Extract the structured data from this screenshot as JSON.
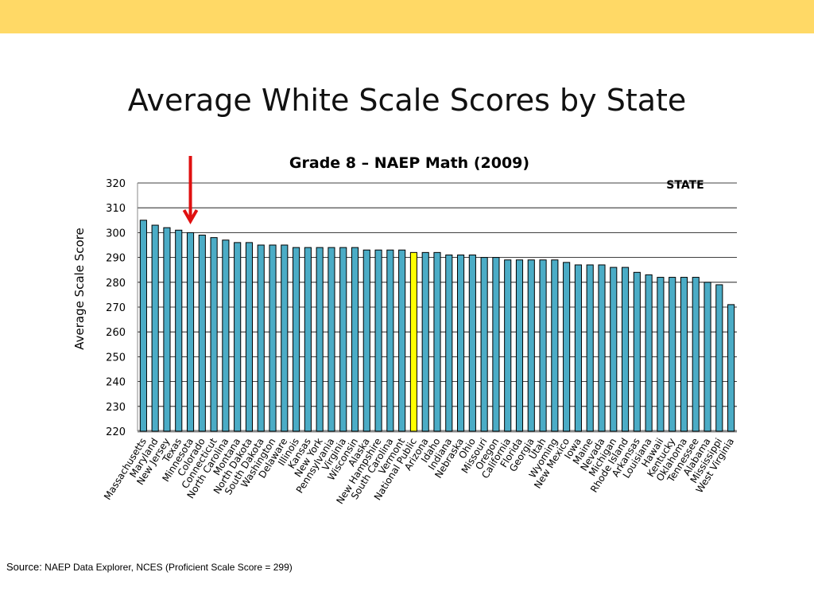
{
  "slide": {
    "title": "Average White Scale Scores by State",
    "source_label": "Source:",
    "source_text": "NAEP Data Explorer, NCES (Proficient Scale Score = 299)"
  },
  "colors": {
    "band": "#FFD966",
    "bar": "#4BACC6",
    "bar_highlight": "#FFFF00",
    "bar_outline": "#000000",
    "arrow": "#E01010"
  },
  "chart_data": {
    "type": "bar",
    "title": "Grade 8 – NAEP Math (2009)",
    "xlabel": "",
    "ylabel": "Average Scale Score",
    "annotation": "STATE",
    "ylim": [
      220,
      320
    ],
    "yticks": [
      220,
      230,
      240,
      250,
      260,
      270,
      280,
      290,
      300,
      310,
      320
    ],
    "grid": true,
    "highlight_category": "National Public",
    "arrow_category": "Minnesota",
    "categories": [
      "Massachusetts",
      "Maryland",
      "New Jersey",
      "Texas",
      "Minnesota",
      "Colorado",
      "Connecticut",
      "North Carolina",
      "Montana",
      "North Dakota",
      "South Dakota",
      "Washington",
      "Delaware",
      "Illinois",
      "Kansas",
      "New York",
      "Pennsylvania",
      "Virginia",
      "Wisconsin",
      "Alaska",
      "New Hampshire",
      "South Carolina",
      "Vermont",
      "National Public",
      "Arizona",
      "Idaho",
      "Indiana",
      "Nebraska",
      "Ohio",
      "Missouri",
      "Oregon",
      "California",
      "Florida",
      "Georgia",
      "Utah",
      "Wyoming",
      "New Mexico",
      "Iowa",
      "Maine",
      "Nevada",
      "Michigan",
      "Rhode Island",
      "Arkansas",
      "Louisiana",
      "Hawaii",
      "Kentucky",
      "Oklahoma",
      "Tennessee",
      "Alabama",
      "Mississippi",
      "West Virginia"
    ],
    "values": [
      305,
      303,
      302,
      301,
      300,
      299,
      298,
      297,
      296,
      296,
      295,
      295,
      295,
      294,
      294,
      294,
      294,
      294,
      294,
      293,
      293,
      293,
      293,
      292,
      292,
      292,
      291,
      291,
      291,
      290,
      290,
      289,
      289,
      289,
      289,
      289,
      288,
      287,
      287,
      287,
      286,
      286,
      284,
      283,
      282,
      282,
      282,
      282,
      280,
      279,
      271
    ]
  }
}
